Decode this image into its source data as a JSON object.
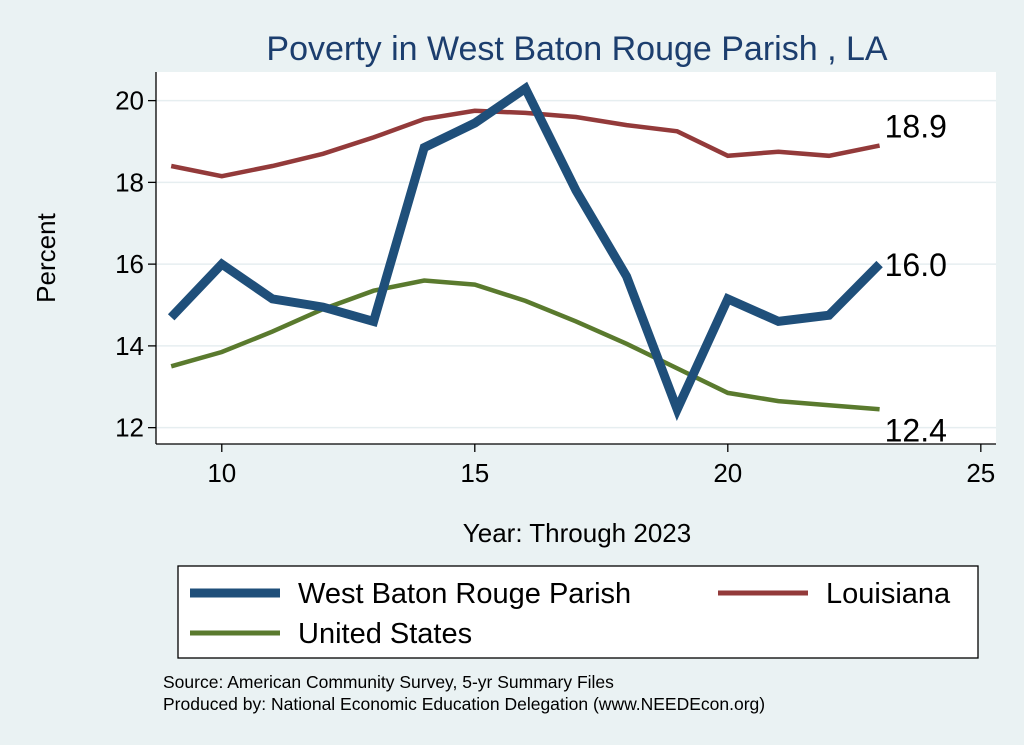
{
  "chart_data": {
    "type": "line",
    "title": "Poverty in West Baton Rouge Parish , LA",
    "xlabel": "Year: Through 2023",
    "ylabel": "Percent",
    "xlim": [
      8.7,
      25.3
    ],
    "ylim": [
      11.6,
      20.7
    ],
    "xticks": [
      10,
      15,
      20,
      25
    ],
    "yticks": [
      12,
      14,
      16,
      18,
      20
    ],
    "grid": true,
    "legend_position": "bottom",
    "series": [
      {
        "name": "West Baton Rouge Parish",
        "color": "#1f4f7a",
        "x": [
          9,
          10,
          11,
          12,
          13,
          14,
          15,
          16,
          17,
          18,
          19,
          20,
          21,
          22,
          23
        ],
        "y": [
          14.7,
          16.0,
          15.15,
          14.95,
          14.6,
          18.85,
          19.45,
          20.3,
          17.8,
          15.7,
          12.45,
          15.15,
          14.6,
          14.75,
          16.0
        ],
        "end_label": "16.0"
      },
      {
        "name": "Louisiana",
        "color": "#933a3a",
        "x": [
          9,
          10,
          11,
          12,
          13,
          14,
          15,
          16,
          17,
          18,
          19,
          20,
          21,
          22,
          23
        ],
        "y": [
          18.4,
          18.15,
          18.4,
          18.7,
          19.1,
          19.55,
          19.75,
          19.7,
          19.6,
          19.4,
          19.25,
          18.65,
          18.75,
          18.65,
          18.9
        ],
        "end_label": "18.9"
      },
      {
        "name": "United States",
        "color": "#5a7a2e",
        "x": [
          9,
          10,
          11,
          12,
          13,
          14,
          15,
          16,
          17,
          18,
          19,
          20,
          21,
          22,
          23
        ],
        "y": [
          13.5,
          13.85,
          14.35,
          14.9,
          15.35,
          15.6,
          15.5,
          15.1,
          14.6,
          14.05,
          13.45,
          12.85,
          12.65,
          12.55,
          12.45
        ],
        "end_label": "12.4"
      }
    ]
  },
  "notes": {
    "source": "Source: American Community Survey, 5-yr Summary Files",
    "produced_by": "Produced by: National Economic Education Delegation (www.NEEDEcon.org)"
  }
}
